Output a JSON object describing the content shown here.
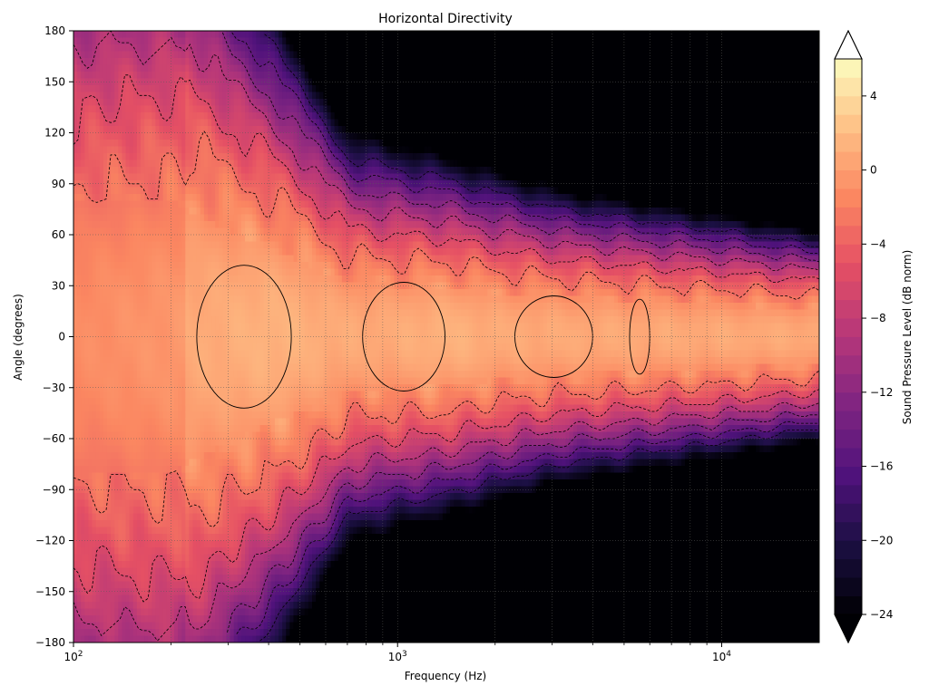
{
  "chart_data": {
    "type": "heatmap",
    "title": "Horizontal Directivity",
    "xlabel": "Frequency (Hz)",
    "ylabel": "Angle (degrees)",
    "colorbar_label": "Sound Pressure Level (dB norm)",
    "x_scale": "log",
    "xlim": [
      100,
      20000
    ],
    "ylim": [
      -180,
      180
    ],
    "x_ticks": [
      {
        "value": 100,
        "base": "10",
        "exp": "2"
      },
      {
        "value": 1000,
        "base": "10",
        "exp": "3"
      },
      {
        "value": 10000,
        "base": "10",
        "exp": "4"
      }
    ],
    "y_ticks": [
      -180,
      -150,
      -120,
      -90,
      -60,
      -30,
      0,
      30,
      60,
      90,
      120,
      150,
      180
    ],
    "y_tick_labels": [
      "−180",
      "−150",
      "−120",
      "−90",
      "−60",
      "−30",
      "0",
      "30",
      "60",
      "90",
      "120",
      "150",
      "180"
    ],
    "colorbar_range": [
      -24,
      6
    ],
    "colorbar_ticks": [
      -24,
      -20,
      -16,
      -12,
      -8,
      -4,
      0,
      4
    ],
    "colorbar_tick_labels": [
      "−24",
      "−20",
      "−16",
      "−12",
      "−8",
      "−4",
      "0",
      "4"
    ],
    "contour_step_db": 1,
    "colormap": "magma",
    "extend": "both",
    "grid": true,
    "grid_style": "dotted",
    "description_samples": [
      {
        "frequency_hz": 100,
        "angle_deg": 0,
        "spl_db": -1
      },
      {
        "frequency_hz": 400,
        "angle_deg": 0,
        "spl_db": 1
      },
      {
        "frequency_hz": 1000,
        "angle_deg": 0,
        "spl_db": 1
      },
      {
        "frequency_hz": 1000,
        "angle_deg": 90,
        "spl_db": -6
      },
      {
        "frequency_hz": 1000,
        "angle_deg": 180,
        "spl_db": -18
      },
      {
        "frequency_hz": 10000,
        "angle_deg": 0,
        "spl_db": 0
      },
      {
        "frequency_hz": 10000,
        "angle_deg": 60,
        "spl_db": -10
      },
      {
        "frequency_hz": 10000,
        "angle_deg": 120,
        "spl_db": -24
      },
      {
        "frequency_hz": 20000,
        "angle_deg": 0,
        "spl_db": 0
      },
      {
        "frequency_hz": 20000,
        "angle_deg": 90,
        "spl_db": -22
      }
    ]
  }
}
